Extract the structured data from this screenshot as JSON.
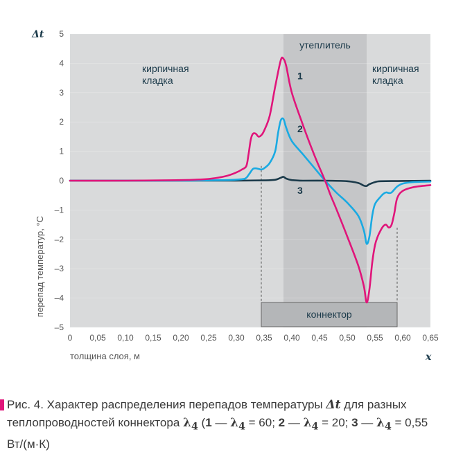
{
  "chart_data": {
    "type": "line",
    "xlabel": "толщина слоя, м",
    "x_symbol": "x",
    "ylabel": "перепад температур, °С",
    "y_symbol": "Δt",
    "xlim": [
      0,
      0.65
    ],
    "ylim": [
      -5,
      5
    ],
    "x_ticks": [
      0,
      0.05,
      0.1,
      0.15,
      0.2,
      0.25,
      0.3,
      0.35,
      0.4,
      0.45,
      0.5,
      0.55,
      0.6,
      0.65
    ],
    "x_tick_labels": [
      "0",
      "0,05",
      "0,10",
      "0,15",
      "0,20",
      "0,25",
      "0,30",
      "0,35",
      "0,40",
      "0,45",
      "0,50",
      "0,55",
      "0,60",
      "0,65"
    ],
    "y_ticks": [
      5,
      4,
      3,
      2,
      1,
      0,
      -1,
      -2,
      -3,
      -4,
      -5
    ],
    "y_tick_labels": [
      "5",
      "4",
      "3",
      "2",
      "1",
      "0",
      "–1",
      "–2",
      "–3",
      "–4",
      "–5"
    ],
    "regions": [
      {
        "name": "кирпичная кладка",
        "line1": "кирпичная",
        "line2": "кладка",
        "x_start": 0,
        "x_end": 0.385
      },
      {
        "name": "утеплитель",
        "line1": "утеплитель",
        "line2": "",
        "x_start": 0.385,
        "x_end": 0.535
      },
      {
        "name": "кирпичная кладка",
        "line1": "кирпичная",
        "line2": "кладка",
        "x_start": 0.535,
        "x_end": 0.65
      }
    ],
    "connector": {
      "label": "коннектор",
      "x_start": 0.345,
      "x_end": 0.59
    },
    "series": [
      {
        "name": "1",
        "lambda": 60,
        "color": "#e0157a",
        "x": [
          0,
          0.1,
          0.2,
          0.25,
          0.28,
          0.3,
          0.31,
          0.318,
          0.322,
          0.326,
          0.33,
          0.335,
          0.34,
          0.345,
          0.35,
          0.36,
          0.37,
          0.38,
          0.385,
          0.39,
          0.4,
          0.42,
          0.44,
          0.46,
          0.47,
          0.48,
          0.5,
          0.52,
          0.53,
          0.535,
          0.54,
          0.545,
          0.55,
          0.555,
          0.56,
          0.565,
          0.57,
          0.575,
          0.58,
          0.585,
          0.59,
          0.6,
          0.62,
          0.65
        ],
        "y": [
          0,
          0,
          0.02,
          0.06,
          0.15,
          0.28,
          0.38,
          0.5,
          0.9,
          1.4,
          1.6,
          1.6,
          1.5,
          1.55,
          1.7,
          2.2,
          3.2,
          4.1,
          4.15,
          3.9,
          3.0,
          1.9,
          0.9,
          0.0,
          -0.5,
          -0.95,
          -1.9,
          -2.9,
          -3.6,
          -4.15,
          -3.7,
          -2.8,
          -2.2,
          -1.9,
          -1.7,
          -1.55,
          -1.5,
          -1.6,
          -1.5,
          -1.1,
          -0.6,
          -0.35,
          -0.22,
          -0.15
        ]
      },
      {
        "name": "2",
        "lambda": 20,
        "color": "#1aaae2",
        "x": [
          0,
          0.1,
          0.2,
          0.28,
          0.31,
          0.318,
          0.324,
          0.33,
          0.335,
          0.34,
          0.345,
          0.35,
          0.36,
          0.37,
          0.375,
          0.38,
          0.385,
          0.39,
          0.4,
          0.42,
          0.44,
          0.46,
          0.48,
          0.5,
          0.52,
          0.53,
          0.535,
          0.54,
          0.545,
          0.55,
          0.56,
          0.565,
          0.57,
          0.575,
          0.58,
          0.59,
          0.6,
          0.62,
          0.65
        ],
        "y": [
          0,
          0,
          0,
          0.02,
          0.05,
          0.1,
          0.25,
          0.4,
          0.42,
          0.4,
          0.38,
          0.42,
          0.6,
          1.0,
          1.6,
          2.05,
          2.1,
          1.8,
          1.35,
          0.9,
          0.45,
          0.0,
          -0.4,
          -0.75,
          -1.2,
          -1.7,
          -2.15,
          -1.9,
          -1.2,
          -0.8,
          -0.55,
          -0.45,
          -0.4,
          -0.42,
          -0.4,
          -0.2,
          -0.1,
          -0.05,
          -0.03
        ]
      },
      {
        "name": "3",
        "lambda": 0.55,
        "color": "#1b3a4a",
        "x": [
          0,
          0.2,
          0.3,
          0.35,
          0.37,
          0.38,
          0.385,
          0.39,
          0.4,
          0.42,
          0.46,
          0.5,
          0.52,
          0.53,
          0.535,
          0.54,
          0.55,
          0.56,
          0.6,
          0.65
        ],
        "y": [
          0,
          0,
          0,
          0.01,
          0.03,
          0.1,
          0.13,
          0.07,
          0.02,
          0.0,
          0.0,
          -0.02,
          -0.08,
          -0.17,
          -0.18,
          -0.12,
          -0.05,
          -0.02,
          -0.01,
          0.0
        ]
      }
    ],
    "guide_lines_x": [
      0.345,
      0.59
    ]
  },
  "caption": {
    "prefix": "Рис. 4. Характер распределения перепадов температуры",
    "symbol": "Δt",
    "middle": "для разных теплопроводностей коннектора",
    "lambda_symbol": "λ",
    "lambda_sub": "4",
    "open": "(",
    "items": [
      {
        "num": "1",
        "dash": " — ",
        "eq": " = 60; "
      },
      {
        "num": "2",
        "dash": " — ",
        "eq": " = 20; "
      },
      {
        "num": "3",
        "dash": " — ",
        "eq": " = 0,55"
      }
    ],
    "units": "Вт/(м·К)"
  },
  "colors": {
    "plot_background": "#d9dadb",
    "insulation_band": "#c5c6c8",
    "connector_fill": "#b4b6b8",
    "accent": "#e0157a"
  }
}
